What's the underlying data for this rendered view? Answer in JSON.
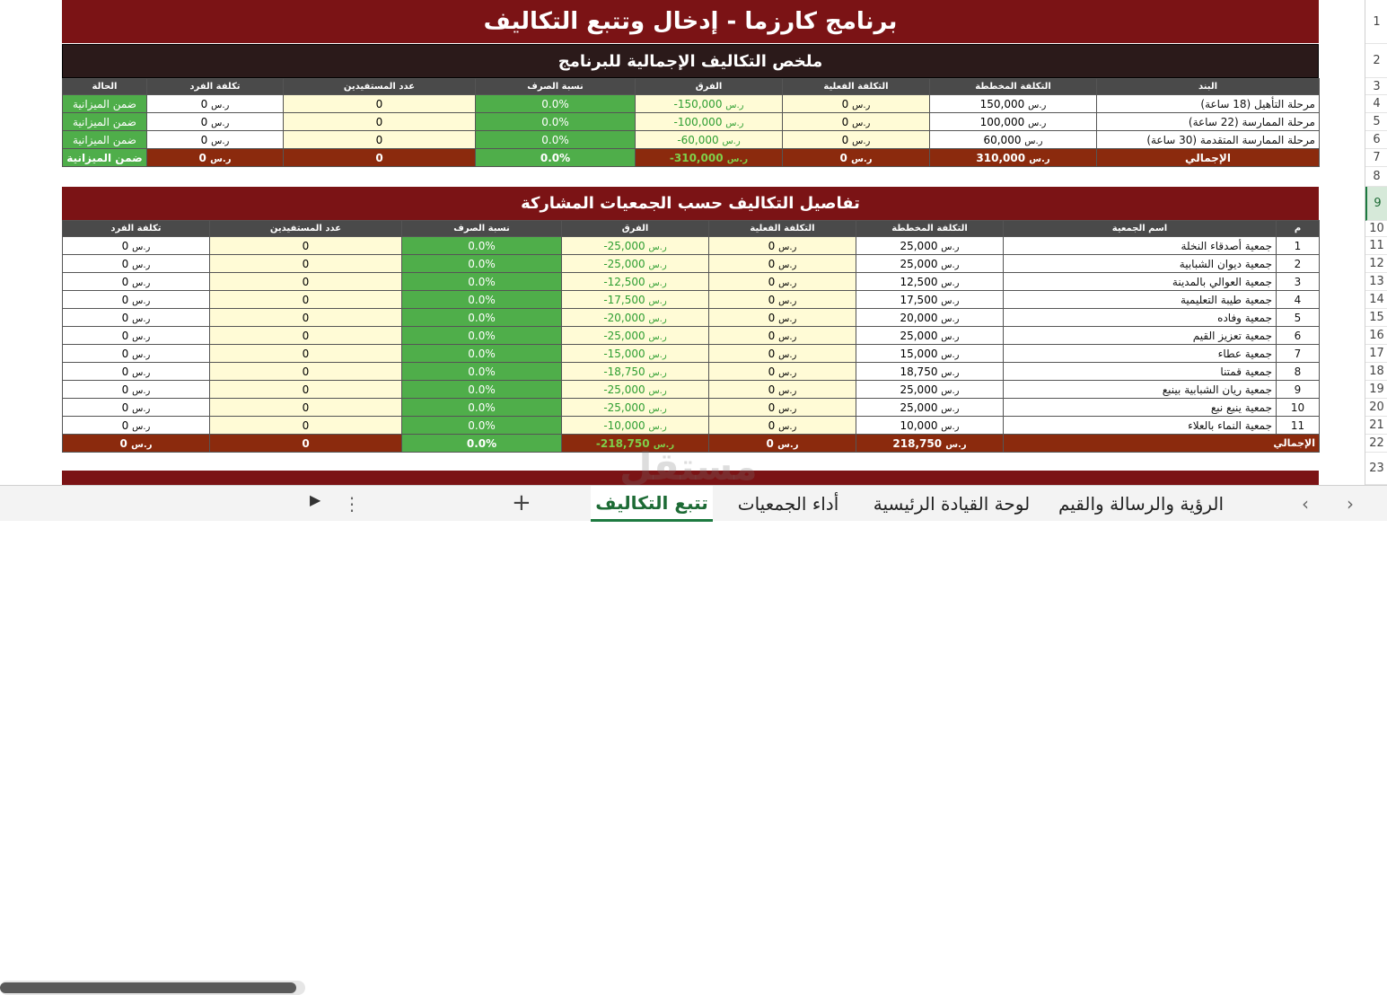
{
  "title": "برنامج كارزما - إدخال وتتبع التكاليف",
  "summary": {
    "heading": "ملخص التكاليف الإجمالية للبرنامج",
    "headers": [
      "البند",
      "التكلفة المخططة",
      "التكلفة الفعلية",
      "الفرق",
      "نسبة الصرف",
      "عدد المستفيدين",
      "تكلفة الفرد",
      "الحالة"
    ],
    "rows": [
      {
        "item": "مرحلة التأهيل (18 ساعة)",
        "planned": "150,000",
        "actual": "0",
        "diff": "-150,000",
        "pct": "0.0%",
        "beneficiaries": "0",
        "per_person": "0",
        "status": "ضمن الميزانية"
      },
      {
        "item": "مرحلة الممارسة (22 ساعة)",
        "planned": "100,000",
        "actual": "0",
        "diff": "-100,000",
        "pct": "0.0%",
        "beneficiaries": "0",
        "per_person": "0",
        "status": "ضمن الميزانية"
      },
      {
        "item": "مرحلة الممارسة المتقدمة (30 ساعة)",
        "planned": "60,000",
        "actual": "0",
        "diff": "-60,000",
        "pct": "0.0%",
        "beneficiaries": "0",
        "per_person": "0",
        "status": "ضمن الميزانية"
      }
    ],
    "total": {
      "item": "الإجمالي",
      "planned": "310,000",
      "actual": "0",
      "diff": "-310,000",
      "pct": "0.0%",
      "beneficiaries": "0",
      "per_person": "0",
      "status": "ضمن الميزانية"
    }
  },
  "details": {
    "heading": "تفاصيل التكاليف حسب الجمعيات المشاركة",
    "headers": [
      "م",
      "اسم الجمعية",
      "التكلفة المخططة",
      "التكلفة الفعلية",
      "الفرق",
      "نسبة الصرف",
      "عدد المستفيدين",
      "تكلفة الفرد"
    ],
    "rows": [
      {
        "n": "1",
        "name": "جمعية أصدقاء النخلة",
        "planned": "25,000",
        "actual": "0",
        "diff": "-25,000",
        "pct": "0.0%",
        "beneficiaries": "0",
        "per_person": "0"
      },
      {
        "n": "2",
        "name": "جمعية ديوان الشبابية",
        "planned": "25,000",
        "actual": "0",
        "diff": "-25,000",
        "pct": "0.0%",
        "beneficiaries": "0",
        "per_person": "0"
      },
      {
        "n": "3",
        "name": "جمعية العوالي بالمدينة",
        "planned": "12,500",
        "actual": "0",
        "diff": "-12,500",
        "pct": "0.0%",
        "beneficiaries": "0",
        "per_person": "0"
      },
      {
        "n": "4",
        "name": "جمعية طيبة التعليمية",
        "planned": "17,500",
        "actual": "0",
        "diff": "-17,500",
        "pct": "0.0%",
        "beneficiaries": "0",
        "per_person": "0"
      },
      {
        "n": "5",
        "name": "جمعية وفاده",
        "planned": "20,000",
        "actual": "0",
        "diff": "-20,000",
        "pct": "0.0%",
        "beneficiaries": "0",
        "per_person": "0"
      },
      {
        "n": "6",
        "name": "جمعية تعزيز القيم",
        "planned": "25,000",
        "actual": "0",
        "diff": "-25,000",
        "pct": "0.0%",
        "beneficiaries": "0",
        "per_person": "0"
      },
      {
        "n": "7",
        "name": "جمعية عطاء",
        "planned": "15,000",
        "actual": "0",
        "diff": "-15,000",
        "pct": "0.0%",
        "beneficiaries": "0",
        "per_person": "0"
      },
      {
        "n": "8",
        "name": "جمعية قمتنا",
        "planned": "18,750",
        "actual": "0",
        "diff": "-18,750",
        "pct": "0.0%",
        "beneficiaries": "0",
        "per_person": "0"
      },
      {
        "n": "9",
        "name": "جمعية ريان الشبابية بينبع",
        "planned": "25,000",
        "actual": "0",
        "diff": "-25,000",
        "pct": "0.0%",
        "beneficiaries": "0",
        "per_person": "0"
      },
      {
        "n": "10",
        "name": "جمعية ينبع نبع",
        "planned": "25,000",
        "actual": "0",
        "diff": "-25,000",
        "pct": "0.0%",
        "beneficiaries": "0",
        "per_person": "0"
      },
      {
        "n": "11",
        "name": "جمعية النماء بالعلاء",
        "planned": "10,000",
        "actual": "0",
        "diff": "-10,000",
        "pct": "0.0%",
        "beneficiaries": "0",
        "per_person": "0"
      }
    ],
    "total": {
      "label": "الإجمالي",
      "planned": "218,750",
      "actual": "0",
      "diff": "-218,750",
      "pct": "0.0%",
      "beneficiaries": "0",
      "per_person": "0"
    }
  },
  "currency": "ر.س",
  "row_numbers": [
    "1",
    "2",
    "3",
    "4",
    "5",
    "6",
    "7",
    "8",
    "9",
    "10",
    "11",
    "12",
    "13",
    "14",
    "15",
    "16",
    "17",
    "18",
    "19",
    "20",
    "21",
    "22",
    "23"
  ],
  "tabs": [
    "الرؤية والرسالة والقيم",
    "لوحة القيادة الرئيسية",
    "أداء الجمعيات",
    "تتبع التكاليف"
  ],
  "add_sheet": "+",
  "more": "⋮",
  "icons": {
    "prev": "chevron-left-icon",
    "next": "chevron-right-icon",
    "add": "plus-icon",
    "more": "kebab-icon"
  },
  "colors": {
    "banner": "#7b1315",
    "total_row": "#8b2a0d",
    "green": "#4fae4a",
    "yellow": "#fffbd6",
    "header": "#4a4a4a"
  }
}
